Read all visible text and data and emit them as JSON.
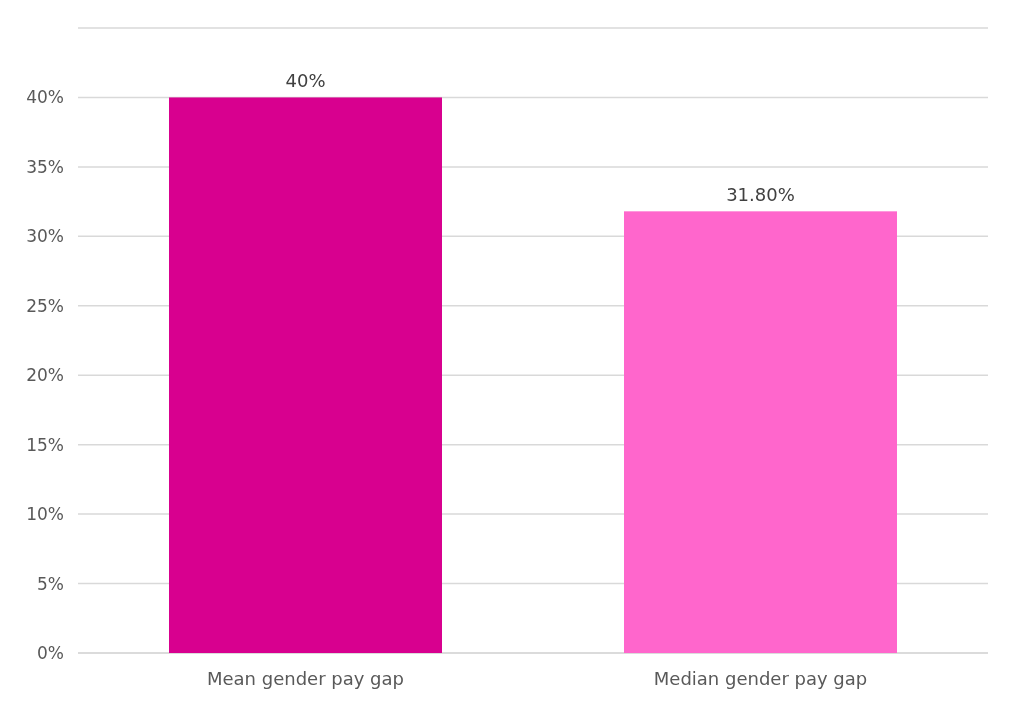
{
  "chart_data": {
    "type": "bar",
    "categories": [
      "Mean gender pay gap",
      "Median gender pay gap"
    ],
    "values": [
      40,
      31.8
    ],
    "colors": [
      "#d8008f",
      "#ff66cc"
    ],
    "value_labels": [
      "40%",
      "31.80%"
    ],
    "ylim": [
      0,
      45
    ],
    "yticks": [
      {
        "value": 0,
        "label": "0%"
      },
      {
        "value": 5,
        "label": "5%"
      },
      {
        "value": 10,
        "label": "10%"
      },
      {
        "value": 15,
        "label": "15%"
      },
      {
        "value": 20,
        "label": "20%"
      },
      {
        "value": 25,
        "label": "25%"
      },
      {
        "value": 30,
        "label": "30%"
      },
      {
        "value": 35,
        "label": "35%"
      },
      {
        "value": 40,
        "label": "40%"
      },
      {
        "value": 45,
        "label": null
      }
    ],
    "grid": true
  }
}
